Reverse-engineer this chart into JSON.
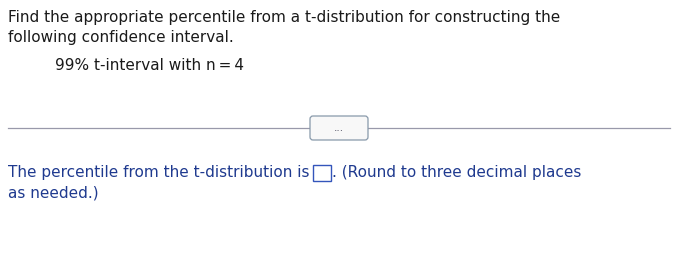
{
  "line1": "Find the appropriate percentile from a t-distribution for constructing the",
  "line2": "following confidence interval.",
  "indent_text": "99% t-interval with n = 4",
  "bottom_text_part1": "The percentile from the t-distribution is",
  "bottom_text_part2": ". (Round to three decimal places",
  "bottom_text_part3": "as needed.)",
  "dots": "...",
  "background_color": "#ffffff",
  "text_color_black": "#1a1a1a",
  "text_color_blue": "#1f3a8f",
  "separator_color": "#9999aa",
  "font_size_main": 11.0,
  "font_size_dots": 7.5
}
